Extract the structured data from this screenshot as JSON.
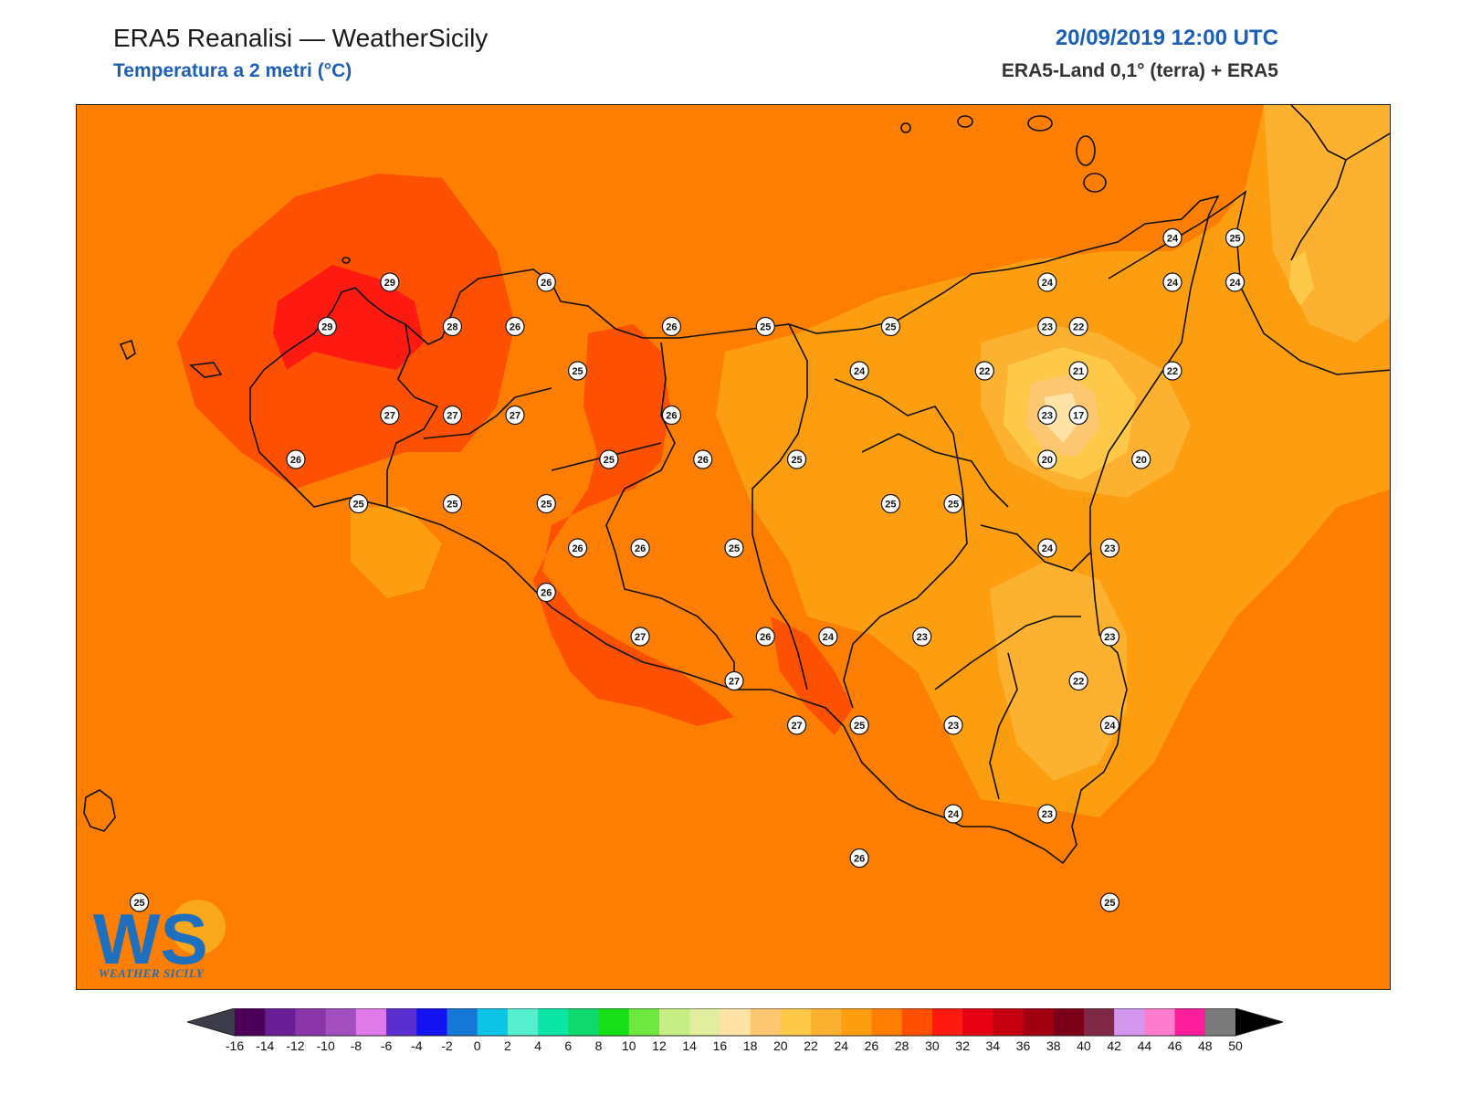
{
  "header": {
    "title": "ERA5 Reanalisi — WeatherSicily",
    "subtitle": "Temperatura a 2 metri (°C)",
    "datetime": "20/09/2019 12:00 UTC",
    "source": "ERA5-Land 0,1° (terra) + ERA5"
  },
  "logo": {
    "text": "WS",
    "caption": "WEATHER SICILY"
  },
  "colorbar": {
    "labels": [
      "-16",
      "-14",
      "-12",
      "-10",
      "-8",
      "-6",
      "-4",
      "-2",
      "0",
      "2",
      "4",
      "6",
      "8",
      "10",
      "12",
      "14",
      "16",
      "18",
      "20",
      "22",
      "24",
      "26",
      "28",
      "30",
      "32",
      "34",
      "36",
      "38",
      "40",
      "42",
      "44",
      "46",
      "48",
      "50"
    ],
    "colors": [
      "#4d0058",
      "#6a1e96",
      "#8a36a8",
      "#a34fbf",
      "#e07ae8",
      "#5a2fcf",
      "#1313f2",
      "#1577d6",
      "#0bc4e6",
      "#55efd0",
      "#0be6a7",
      "#0fd96c",
      "#18e018",
      "#6ee83f",
      "#c7ee85",
      "#e2ee9f",
      "#fee2a6",
      "#fdc670",
      "#fec948",
      "#fdb131",
      "#fd9e10",
      "#fd7e00",
      "#fd5000",
      "#fe1a10",
      "#e60013",
      "#c4000f",
      "#a00010",
      "#7a0018",
      "#7e2846",
      "#d596f0",
      "#fd7ccd",
      "#fc1e9b",
      "#7b7b7b",
      "#3c3c3c"
    ],
    "under_color": "#3c3c4a",
    "over_color": "#000000"
  },
  "map_values": [
    {
      "v": "29",
      "lon": 12.8,
      "lat": 38.2
    },
    {
      "v": "29",
      "lon": 12.6,
      "lat": 38.1
    },
    {
      "v": "28",
      "lon": 13.0,
      "lat": 38.1
    },
    {
      "v": "26",
      "lon": 13.2,
      "lat": 38.1
    },
    {
      "v": "26",
      "lon": 13.3,
      "lat": 38.2
    },
    {
      "v": "26",
      "lon": 13.7,
      "lat": 38.1
    },
    {
      "v": "25",
      "lon": 14.0,
      "lat": 38.1
    },
    {
      "v": "25",
      "lon": 14.4,
      "lat": 38.1
    },
    {
      "v": "24",
      "lon": 14.9,
      "lat": 38.2
    },
    {
      "v": "24",
      "lon": 15.3,
      "lat": 38.2
    },
    {
      "v": "24",
      "lon": 15.3,
      "lat": 38.3
    },
    {
      "v": "25",
      "lon": 15.5,
      "lat": 38.3
    },
    {
      "v": "24",
      "lon": 15.5,
      "lat": 38.2
    },
    {
      "v": "23",
      "lon": 14.9,
      "lat": 38.1
    },
    {
      "v": "22",
      "lon": 15.0,
      "lat": 38.1
    },
    {
      "v": "25",
      "lon": 13.4,
      "lat": 38.0
    },
    {
      "v": "24",
      "lon": 14.3,
      "lat": 38.0
    },
    {
      "v": "22",
      "lon": 14.7,
      "lat": 38.0
    },
    {
      "v": "21",
      "lon": 15.0,
      "lat": 38.0
    },
    {
      "v": "22",
      "lon": 15.3,
      "lat": 38.0
    },
    {
      "v": "27",
      "lon": 12.8,
      "lat": 37.9
    },
    {
      "v": "27",
      "lon": 13.0,
      "lat": 37.9
    },
    {
      "v": "27",
      "lon": 13.2,
      "lat": 37.9
    },
    {
      "v": "26",
      "lon": 13.7,
      "lat": 37.9
    },
    {
      "v": "23",
      "lon": 14.9,
      "lat": 37.9
    },
    {
      "v": "17",
      "lon": 15.0,
      "lat": 37.9
    },
    {
      "v": "26",
      "lon": 12.5,
      "lat": 37.8
    },
    {
      "v": "25",
      "lon": 13.5,
      "lat": 37.8
    },
    {
      "v": "26",
      "lon": 13.8,
      "lat": 37.8
    },
    {
      "v": "25",
      "lon": 14.1,
      "lat": 37.8
    },
    {
      "v": "20",
      "lon": 14.9,
      "lat": 37.8
    },
    {
      "v": "20",
      "lon": 15.2,
      "lat": 37.8
    },
    {
      "v": "25",
      "lon": 12.7,
      "lat": 37.7
    },
    {
      "v": "25",
      "lon": 13.0,
      "lat": 37.7
    },
    {
      "v": "25",
      "lon": 13.3,
      "lat": 37.7
    },
    {
      "v": "25",
      "lon": 14.4,
      "lat": 37.7
    },
    {
      "v": "25",
      "lon": 14.6,
      "lat": 37.7
    },
    {
      "v": "26",
      "lon": 13.4,
      "lat": 37.6
    },
    {
      "v": "26",
      "lon": 13.6,
      "lat": 37.6
    },
    {
      "v": "25",
      "lon": 13.9,
      "lat": 37.6
    },
    {
      "v": "24",
      "lon": 14.9,
      "lat": 37.6
    },
    {
      "v": "23",
      "lon": 15.1,
      "lat": 37.6
    },
    {
      "v": "26",
      "lon": 13.3,
      "lat": 37.5
    },
    {
      "v": "27",
      "lon": 13.6,
      "lat": 37.4
    },
    {
      "v": "26",
      "lon": 14.0,
      "lat": 37.4
    },
    {
      "v": "24",
      "lon": 14.2,
      "lat": 37.4
    },
    {
      "v": "23",
      "lon": 14.5,
      "lat": 37.4
    },
    {
      "v": "23",
      "lon": 15.1,
      "lat": 37.4
    },
    {
      "v": "27",
      "lon": 13.9,
      "lat": 37.3
    },
    {
      "v": "22",
      "lon": 15.0,
      "lat": 37.3
    },
    {
      "v": "27",
      "lon": 14.1,
      "lat": 37.2
    },
    {
      "v": "25",
      "lon": 14.3,
      "lat": 37.2
    },
    {
      "v": "23",
      "lon": 14.6,
      "lat": 37.2
    },
    {
      "v": "24",
      "lon": 15.1,
      "lat": 37.2
    },
    {
      "v": "24",
      "lon": 14.6,
      "lat": 37.0
    },
    {
      "v": "23",
      "lon": 14.9,
      "lat": 37.0
    },
    {
      "v": "26",
      "lon": 14.3,
      "lat": 36.9
    },
    {
      "v": "25",
      "lon": 15.1,
      "lat": 36.8
    },
    {
      "v": "25",
      "lon": 12.0,
      "lat": 36.8
    }
  ]
}
